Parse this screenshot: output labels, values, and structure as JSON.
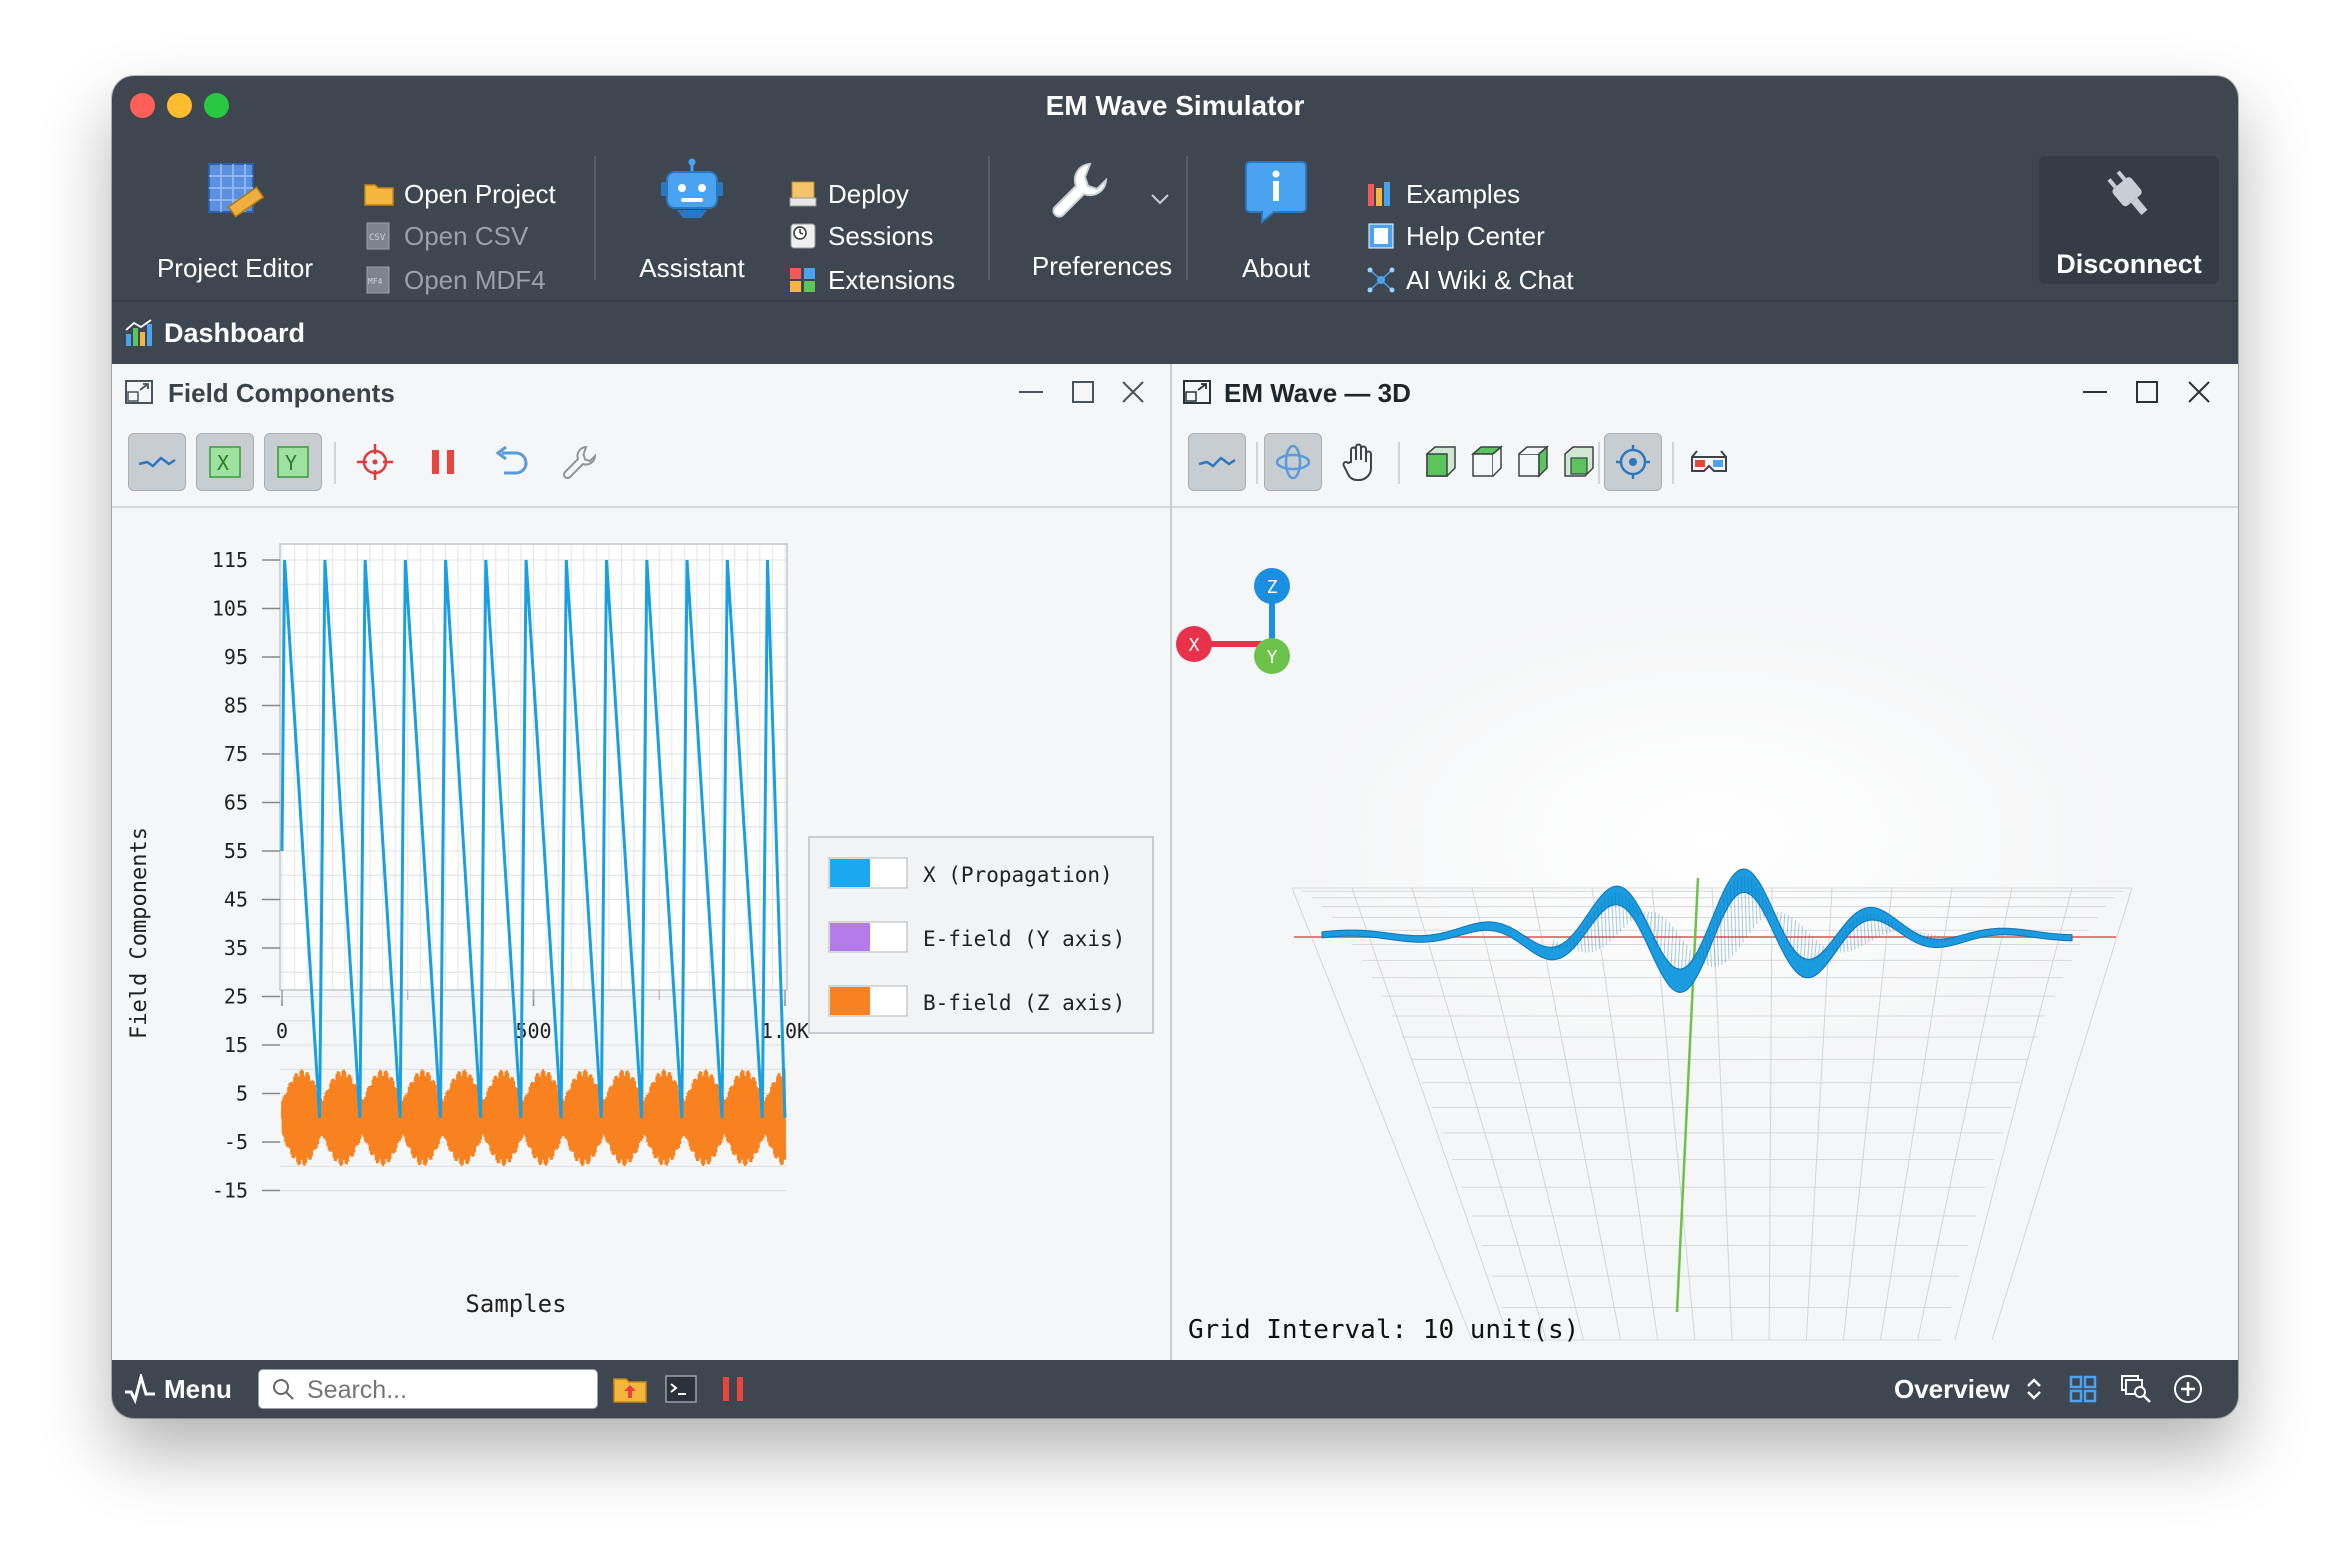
{
  "window": {
    "title": "EM Wave Simulator"
  },
  "toolbar": {
    "project_editor": "Project Editor",
    "open_project": "Open Project",
    "open_csv": "Open CSV",
    "open_mdf4": "Open MDF4",
    "assistant": "Assistant",
    "deploy": "Deploy",
    "sessions": "Sessions",
    "extensions": "Extensions",
    "preferences": "Preferences",
    "about": "About",
    "examples": "Examples",
    "help_center": "Help Center",
    "ai_wiki": "AI Wiki & Chat",
    "disconnect": "Disconnect"
  },
  "dashboard": {
    "label": "Dashboard"
  },
  "left_panel": {
    "title": "Field Components",
    "tools": [
      "line-chart-icon",
      "x-axis-icon",
      "y-axis-icon",
      "crosshair-icon",
      "pause-icon",
      "undo-icon",
      "wrench-icon"
    ]
  },
  "right_panel": {
    "title": "EM Wave — 3D",
    "grid_interval": "Grid Interval: 10 unit(s)",
    "axis_labels": {
      "x": "X",
      "y": "Y",
      "z": "Z"
    }
  },
  "chart_data": {
    "type": "line",
    "title": "",
    "xlabel": "Samples",
    "ylabel": "Field Components",
    "xlim": [
      0,
      1000
    ],
    "ylim": [
      -15,
      115
    ],
    "x_ticks": [
      "0",
      "500",
      "1.0K"
    ],
    "y_ticks": [
      "115",
      "105",
      "95",
      "85",
      "75",
      "65",
      "55",
      "45",
      "35",
      "25",
      "15",
      "5",
      "-5",
      "-15"
    ],
    "grid": true,
    "legend_position": "right",
    "series": [
      {
        "name": "X (Propagation)",
        "color": "#1a9fe0",
        "pattern": "sawtooth",
        "period": 80,
        "min": 0,
        "max": 115
      },
      {
        "name": "E-field (Y axis)",
        "color": "#b57bea",
        "pattern": "none"
      },
      {
        "name": "B-field (Z axis)",
        "color": "#f7821f",
        "pattern": "modulated-oscillation",
        "center": 0,
        "amplitude": 10,
        "envelope_period": 80
      }
    ]
  },
  "statusbar": {
    "menu": "Menu",
    "search_placeholder": "Search...",
    "overview": "Overview"
  },
  "colors": {
    "toolbar_bg": "#3e4650",
    "accent_blue": "#1a9fe0",
    "accent_orange": "#f7821f",
    "accent_purple": "#b57bea"
  }
}
